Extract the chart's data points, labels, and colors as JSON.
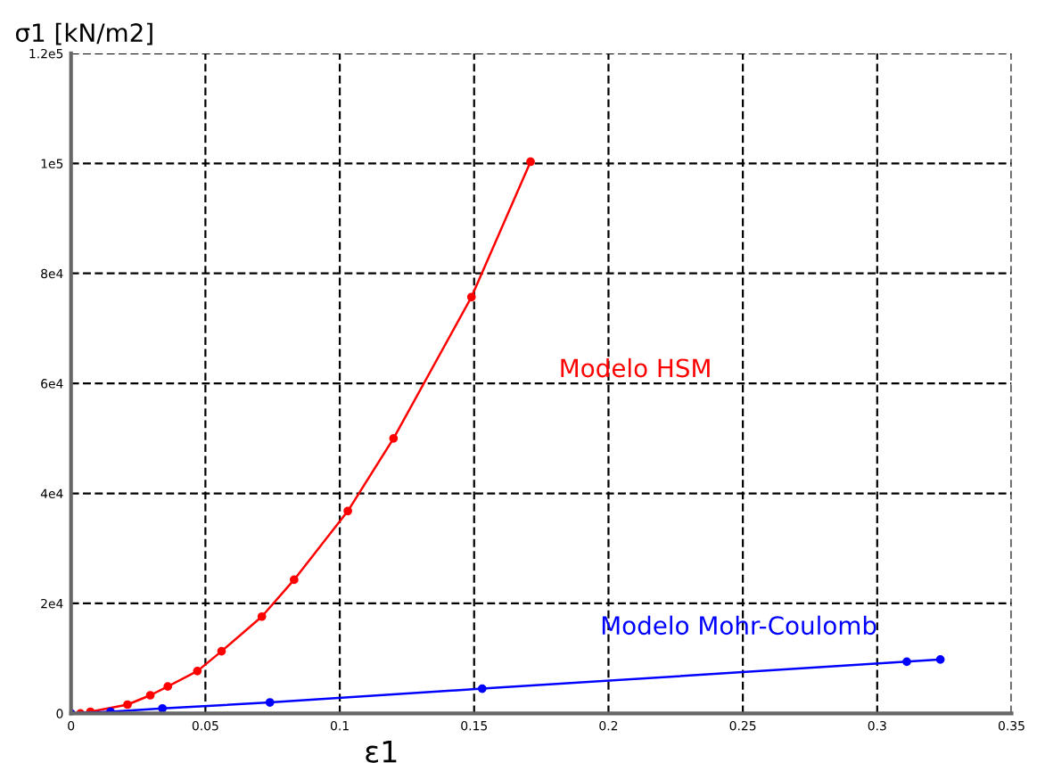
{
  "chart_data": {
    "type": "line",
    "ylabel": "σ1 [kN/m2]",
    "xlabel": "ε1",
    "xlim": [
      0,
      0.35
    ],
    "xticks": [
      0,
      0.05,
      0.1,
      0.15,
      0.2,
      0.25,
      0.3,
      0.35
    ],
    "ylim": [
      0,
      120000
    ],
    "yticks": [
      {
        "value": 0,
        "label": "0"
      },
      {
        "value": 20000,
        "label": "2e4"
      },
      {
        "value": 40000,
        "label": "4e4"
      },
      {
        "value": 60000,
        "label": "6e4"
      },
      {
        "value": 80000,
        "label": "8e4"
      },
      {
        "value": 100000,
        "label": "1e5"
      },
      {
        "value": 120000,
        "label": "1.2e5"
      }
    ],
    "grid": true,
    "marker": "circle",
    "line_style": "solid",
    "legend": false,
    "series": [
      {
        "name": "Modelo HSM",
        "color": "#ff0000",
        "x": [
          0,
          0.0035,
          0.0072,
          0.021,
          0.0295,
          0.036,
          0.047,
          0.056,
          0.071,
          0.083,
          0.103,
          0.12,
          0.149,
          0.171
        ],
        "values": [
          0,
          0,
          300,
          1600,
          3300,
          4900,
          7700,
          11300,
          17600,
          24300,
          36800,
          50000,
          75700,
          100300
        ]
      },
      {
        "name": "Modelo Mohr-Coulomb",
        "color": "#0000ff",
        "x": [
          0,
          0.0147,
          0.034,
          0.074,
          0.153,
          0.311,
          0.3235
        ],
        "values": [
          0,
          300,
          900,
          2000,
          4500,
          9400,
          9800
        ]
      }
    ]
  }
}
